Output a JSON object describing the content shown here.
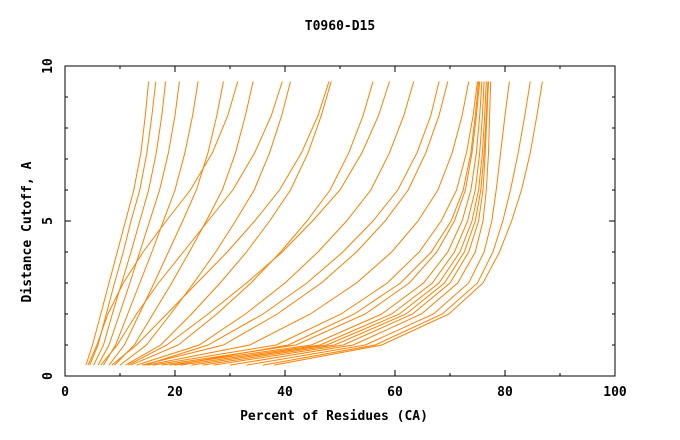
{
  "chart_data": {
    "type": "line",
    "title": "T0960-D15",
    "xlabel": "Percent of Residues (CA)",
    "ylabel": "Distance Cutoff, A",
    "xlim": [
      0,
      100
    ],
    "ylim": [
      0,
      10
    ],
    "x_ticks": [
      0,
      20,
      40,
      60,
      80,
      100
    ],
    "x_tick_labels": [
      "0",
      "20",
      "40",
      "60",
      "80",
      "100"
    ],
    "y_ticks": [
      0,
      5,
      10
    ],
    "y_tick_labels": [
      "0",
      "5",
      "10"
    ],
    "grid": false,
    "legend": "none",
    "series_color": "#ff8000",
    "series": [
      {
        "x": [
          3.8,
          5.0,
          6.5,
          8.0,
          9.5,
          11.0,
          12.5,
          13.8,
          14.6,
          15.2
        ],
        "y": [
          0.35,
          1.0,
          2.0,
          3.0,
          4.0,
          5.0,
          6.0,
          7.2,
          8.4,
          9.5
        ]
      },
      {
        "x": [
          4.5,
          6.0,
          7.5,
          9.0,
          10.6,
          12.0,
          13.6,
          14.9,
          15.8,
          16.5
        ],
        "y": [
          0.35,
          1.0,
          2.0,
          3.0,
          4.0,
          5.0,
          6.0,
          7.2,
          8.4,
          9.5
        ]
      },
      {
        "x": [
          5.2,
          7.0,
          8.6,
          10.3,
          12.0,
          13.6,
          15.2,
          16.6,
          17.6,
          18.3
        ],
        "y": [
          0.35,
          1.0,
          2.0,
          3.0,
          4.0,
          5.0,
          6.0,
          7.2,
          8.4,
          9.5
        ]
      },
      {
        "x": [
          6.0,
          8.0,
          9.9,
          11.8,
          13.6,
          15.4,
          17.2,
          18.8,
          20.0,
          20.8
        ],
        "y": [
          0.35,
          1.0,
          2.0,
          3.0,
          4.0,
          5.0,
          6.0,
          7.2,
          8.4,
          9.5
        ]
      },
      {
        "x": [
          7.0,
          9.2,
          11.4,
          13.6,
          15.8,
          17.9,
          20.0,
          21.8,
          23.2,
          24.2
        ],
        "y": [
          0.35,
          1.0,
          2.0,
          3.0,
          4.0,
          5.0,
          6.0,
          7.2,
          8.4,
          9.5
        ]
      },
      {
        "x": [
          8.0,
          10.8,
          13.5,
          16.2,
          18.8,
          21.4,
          23.9,
          26.0,
          27.6,
          28.8
        ],
        "y": [
          0.35,
          1.0,
          2.0,
          3.0,
          4.0,
          5.0,
          6.0,
          7.2,
          8.4,
          9.5
        ]
      },
      {
        "x": [
          9.0,
          12.6,
          16.0,
          19.4,
          22.6,
          25.7,
          28.6,
          31.0,
          32.8,
          34.2
        ],
        "y": [
          0.35,
          1.0,
          2.0,
          3.0,
          4.0,
          5.0,
          6.0,
          7.2,
          8.4,
          9.5
        ]
      },
      {
        "x": [
          10.0,
          14.8,
          19.2,
          23.4,
          27.4,
          31.0,
          34.4,
          37.2,
          39.4,
          41.0
        ],
        "y": [
          0.35,
          1.0,
          2.0,
          3.0,
          4.0,
          5.0,
          6.0,
          7.2,
          8.4,
          9.5
        ]
      },
      {
        "x": [
          11.0,
          17.4,
          23.0,
          28.2,
          33.0,
          37.2,
          41.0,
          44.2,
          46.6,
          48.4
        ],
        "y": [
          0.35,
          1.0,
          2.0,
          3.0,
          4.0,
          5.0,
          6.0,
          7.2,
          8.4,
          9.5
        ]
      },
      {
        "x": [
          12.0,
          20.6,
          27.6,
          33.8,
          39.2,
          44.0,
          48.2,
          51.6,
          54.2,
          56.0
        ],
        "y": [
          0.35,
          1.0,
          2.0,
          3.0,
          4.0,
          5.0,
          6.0,
          7.2,
          8.4,
          9.5
        ]
      },
      {
        "x": [
          13.0,
          24.4,
          32.8,
          40.0,
          46.0,
          51.2,
          55.6,
          59.0,
          61.6,
          63.4
        ],
        "y": [
          0.35,
          1.0,
          2.0,
          3.0,
          4.0,
          5.0,
          6.0,
          7.2,
          8.4,
          9.5
        ]
      },
      {
        "x": [
          14.0,
          28.8,
          38.6,
          46.6,
          53.0,
          58.2,
          62.4,
          65.6,
          68.0,
          69.6
        ],
        "y": [
          0.35,
          1.0,
          2.0,
          3.0,
          4.0,
          5.0,
          6.0,
          7.2,
          8.4,
          9.5
        ]
      },
      {
        "x": [
          15.0,
          33.6,
          44.6,
          53.0,
          59.4,
          64.2,
          67.8,
          70.4,
          72.2,
          73.4
        ],
        "y": [
          0.35,
          1.0,
          2.0,
          3.0,
          4.0,
          5.0,
          6.0,
          7.2,
          8.4,
          9.5
        ]
      },
      {
        "x": [
          16.0,
          38.4,
          50.2,
          58.6,
          64.4,
          68.4,
          71.2,
          73.0,
          74.2,
          75.0
        ],
        "y": [
          0.35,
          1.0,
          2.0,
          3.0,
          4.0,
          5.0,
          6.0,
          7.2,
          8.4,
          9.5
        ]
      },
      {
        "x": [
          17.5,
          42.0,
          54.6,
          62.6,
          67.6,
          70.8,
          72.8,
          74.0,
          74.8,
          75.4
        ],
        "y": [
          0.35,
          1.0,
          2.0,
          3.0,
          4.0,
          5.0,
          6.0,
          7.2,
          8.4,
          9.5
        ]
      },
      {
        "x": [
          19.0,
          44.8,
          57.6,
          65.2,
          69.6,
          72.2,
          73.8,
          74.8,
          75.4,
          75.8
        ],
        "y": [
          0.35,
          1.0,
          2.0,
          3.0,
          4.0,
          5.0,
          6.0,
          7.2,
          8.4,
          9.5
        ]
      },
      {
        "x": [
          21.0,
          46.4,
          59.4,
          66.8,
          70.8,
          73.2,
          74.6,
          75.4,
          75.9,
          76.2
        ],
        "y": [
          0.35,
          1.0,
          2.0,
          3.0,
          4.0,
          5.0,
          6.0,
          7.2,
          8.4,
          9.5
        ]
      },
      {
        "x": [
          23.0,
          47.6,
          60.8,
          68.0,
          71.8,
          74.0,
          75.2,
          75.9,
          76.3,
          76.6
        ],
        "y": [
          0.35,
          1.0,
          2.0,
          3.0,
          4.0,
          5.0,
          6.0,
          7.2,
          8.4,
          9.5
        ]
      },
      {
        "x": [
          25.0,
          49.0,
          62.0,
          69.0,
          72.6,
          74.6,
          75.6,
          76.2,
          76.6,
          76.9
        ],
        "y": [
          0.35,
          1.0,
          2.0,
          3.0,
          4.0,
          5.0,
          6.0,
          7.2,
          8.4,
          9.5
        ]
      },
      {
        "x": [
          27.0,
          50.6,
          63.2,
          70.0,
          73.4,
          75.2,
          76.0,
          76.4,
          76.7,
          77.0
        ],
        "y": [
          0.35,
          1.0,
          2.0,
          3.0,
          4.0,
          5.0,
          6.0,
          7.2,
          8.4,
          9.5
        ]
      },
      {
        "x": [
          30.0,
          52.4,
          64.8,
          71.4,
          74.6,
          76.0,
          76.6,
          77.0,
          77.2,
          77.4
        ],
        "y": [
          0.35,
          1.0,
          2.0,
          3.0,
          4.0,
          5.0,
          6.0,
          7.2,
          8.4,
          9.5
        ]
      },
      {
        "x": [
          33.0,
          54.6,
          67.0,
          73.4,
          76.2,
          77.6,
          78.4,
          79.2,
          80.0,
          80.8
        ],
        "y": [
          0.35,
          1.0,
          2.0,
          3.0,
          4.0,
          5.0,
          6.0,
          7.2,
          8.4,
          9.5
        ]
      },
      {
        "x": [
          36.0,
          56.4,
          68.6,
          75.0,
          77.8,
          79.6,
          81.0,
          82.4,
          83.6,
          84.6
        ],
        "y": [
          0.35,
          1.0,
          2.0,
          3.0,
          4.0,
          5.0,
          6.0,
          7.2,
          8.4,
          9.5
        ]
      },
      {
        "x": [
          38.0,
          57.6,
          69.8,
          76.0,
          79.0,
          81.2,
          83.0,
          84.6,
          85.8,
          86.8
        ],
        "y": [
          0.35,
          1.0,
          2.0,
          3.0,
          4.0,
          5.0,
          6.0,
          7.2,
          8.4,
          9.5
        ]
      },
      {
        "x": [
          6.5,
          9.5,
          13.0,
          17.0,
          21.5,
          26.0,
          30.5,
          34.5,
          37.5,
          39.5
        ],
        "y": [
          0.35,
          1.0,
          2.0,
          3.0,
          4.0,
          5.0,
          6.0,
          7.2,
          8.4,
          9.5
        ]
      },
      {
        "x": [
          8.5,
          13.0,
          18.5,
          24.0,
          29.5,
          34.5,
          39.0,
          43.0,
          46.0,
          48.0
        ],
        "y": [
          0.35,
          1.0,
          2.0,
          3.0,
          4.0,
          5.0,
          6.0,
          7.2,
          8.4,
          9.5
        ]
      },
      {
        "x": [
          11.5,
          18.5,
          26.0,
          33.0,
          39.5,
          45.0,
          50.0,
          54.0,
          57.0,
          59.0
        ],
        "y": [
          0.35,
          1.0,
          2.0,
          3.0,
          4.0,
          5.0,
          6.0,
          7.2,
          8.4,
          9.5
        ]
      },
      {
        "x": [
          14.5,
          26.0,
          36.0,
          44.0,
          50.5,
          56.0,
          60.5,
          64.0,
          66.5,
          68.0
        ],
        "y": [
          0.35,
          1.0,
          2.0,
          3.0,
          4.0,
          5.0,
          6.0,
          7.2,
          8.4,
          9.5
        ]
      },
      {
        "x": [
          4.2,
          5.8,
          7.8,
          10.6,
          14.2,
          18.4,
          22.8,
          26.8,
          29.6,
          31.4
        ],
        "y": [
          0.35,
          1.0,
          2.0,
          3.0,
          4.0,
          5.0,
          6.0,
          7.2,
          8.4,
          9.5
        ]
      },
      {
        "x": [
          20.0,
          40.6,
          52.6,
          61.0,
          66.6,
          70.2,
          72.4,
          73.8,
          74.6,
          75.2
        ],
        "y": [
          0.35,
          1.0,
          2.0,
          3.0,
          4.0,
          5.0,
          6.0,
          7.2,
          8.4,
          9.5
        ]
      }
    ]
  }
}
